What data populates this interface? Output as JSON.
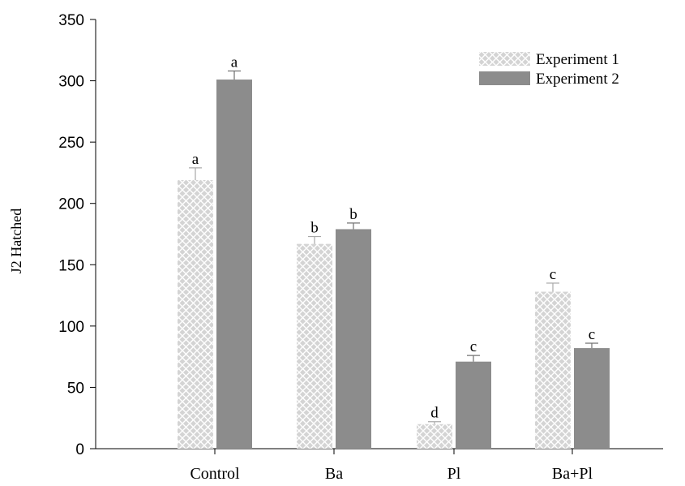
{
  "chart_data": {
    "type": "bar",
    "title": "",
    "xlabel": "",
    "ylabel": "J2 Hatched",
    "ylim": [
      0,
      350
    ],
    "yticks": [
      0,
      50,
      100,
      150,
      200,
      250,
      300,
      350
    ],
    "categories": [
      "Control",
      "Ba",
      "Pl",
      "Ba+Pl"
    ],
    "grid": false,
    "legend_position": "top-right",
    "series": [
      {
        "name": "Experiment 1",
        "pattern": "crosshatch",
        "color": "#c8c8c8",
        "values": [
          219,
          167,
          20,
          128
        ],
        "errors": [
          10,
          6,
          2,
          7
        ],
        "labels": [
          "a",
          "b",
          "d",
          "c"
        ]
      },
      {
        "name": "Experiment 2",
        "pattern": "solid",
        "color": "#8c8c8c",
        "values": [
          301,
          179,
          71,
          82
        ],
        "errors": [
          7,
          5,
          5,
          4
        ],
        "labels": [
          "a",
          "b",
          "c",
          "c"
        ]
      }
    ]
  }
}
